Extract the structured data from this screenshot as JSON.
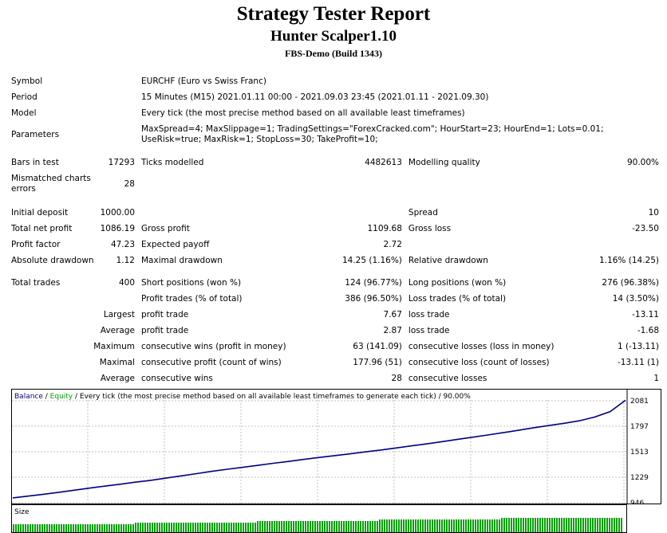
{
  "report": {
    "title": "Strategy Tester Report",
    "ea_name": "Hunter Scalper1.10",
    "server": "FBS-Demo (Build 1343)"
  },
  "info": {
    "symbol_label": "Symbol",
    "symbol_value": "EURCHF (Euro vs Swiss Franc)",
    "period_label": "Period",
    "period_value": "15 Minutes (M15) 2021.01.11 00:00 - 2021.09.03 23:45 (2021.01.11 - 2021.09.30)",
    "model_label": "Model",
    "model_value": "Every tick (the most precise method based on all available least timeframes)",
    "params_label": "Parameters",
    "params_value": "MaxSpread=4; MaxSlippage=1; TradingSettings=\"ForexCracked.com\"; HourStart=23; HourEnd=1; Lots=0.01; UseRisk=true; MaxRisk=1; StopLoss=30; TakeProfit=10;"
  },
  "quality": {
    "bars_label": "Bars in test",
    "bars_value": "17293",
    "ticks_label": "Ticks modelled",
    "ticks_value": "4482613",
    "modq_label": "Modelling quality",
    "modq_value": "90.00%",
    "mism_label": "Mismatched charts errors",
    "mism_value": "28"
  },
  "results": {
    "initdep_label": "Initial deposit",
    "initdep_value": "1000.00",
    "spread_label": "Spread",
    "spread_value": "10",
    "netprofit_label": "Total net profit",
    "netprofit_value": "1086.19",
    "grossprofit_label": "Gross profit",
    "grossprofit_value": "1109.68",
    "grossloss_label": "Gross loss",
    "grossloss_value": "-23.50",
    "pf_label": "Profit factor",
    "pf_value": "47.23",
    "ep_label": "Expected payoff",
    "ep_value": "2.72",
    "absdd_label": "Absolute drawdown",
    "absdd_value": "1.12",
    "maxdd_label": "Maximal drawdown",
    "maxdd_value": "14.25 (1.16%)",
    "reldd_label": "Relative drawdown",
    "reldd_value": "1.16% (14.25)"
  },
  "trades": {
    "total_label": "Total trades",
    "total_value": "400",
    "short_label": "Short positions (won %)",
    "short_value": "124 (96.77%)",
    "long_label": "Long positions (won %)",
    "long_value": "276 (96.38%)",
    "pt_label": "Profit trades (% of total)",
    "pt_value": "386 (96.50%)",
    "lt_label": "Loss trades (% of total)",
    "lt_value": "14 (3.50%)",
    "largest_label": "Largest",
    "largest_pt_label": "profit trade",
    "largest_pt_value": "7.67",
    "largest_lt_label": "loss trade",
    "largest_lt_value": "-13.11",
    "average_label": "Average",
    "average_pt_label": "profit trade",
    "average_pt_value": "2.87",
    "average_lt_label": "loss trade",
    "average_lt_value": "-1.68",
    "maximum_label": "Maximum",
    "max_cw_label": "consecutive wins (profit in money)",
    "max_cw_value": "63 (141.09)",
    "max_cl_label": "consecutive losses (loss in money)",
    "max_cl_value": "1 (-13.11)",
    "maximal_label": "Maximal",
    "mxl_cp_label": "consecutive profit (count of wins)",
    "mxl_cp_value": "177.96 (51)",
    "mxl_cl_label": "consecutive loss (count of losses)",
    "mxl_cl_value": "-13.11 (1)",
    "avg2_label": "Average",
    "avg_cw_label": "consecutive wins",
    "avg_cw_value": "28",
    "avg_cl_label": "consecutive losses",
    "avg_cl_value": "1"
  },
  "chart_data": {
    "type": "line",
    "legend": {
      "balance": "Balance",
      "sep1": " / ",
      "equity": "Equity",
      "rest": " / Every tick (the most precise method based on all available least timeframes to generate each tick) / 90.00%"
    },
    "y_ticks": [
      "2081",
      "1797",
      "1513",
      "1229",
      "946"
    ],
    "ylim": [
      946,
      2081
    ],
    "x": [
      0,
      10,
      20,
      30,
      40,
      50,
      60,
      70,
      80,
      90,
      100,
      110,
      120,
      130,
      140,
      150,
      160,
      170,
      180,
      190,
      200,
      210,
      220,
      230,
      240,
      250,
      260,
      270,
      280,
      290,
      300,
      310,
      320,
      330,
      340,
      350,
      360,
      370,
      380,
      390,
      400
    ],
    "series": [
      {
        "name": "Balance",
        "color": "#000080",
        "values": [
          1000,
          1020,
          1040,
          1062,
          1085,
          1108,
          1130,
          1152,
          1175,
          1195,
          1220,
          1245,
          1270,
          1295,
          1318,
          1340,
          1362,
          1385,
          1405,
          1428,
          1450,
          1470,
          1490,
          1512,
          1532,
          1555,
          1578,
          1600,
          1625,
          1650,
          1675,
          1700,
          1725,
          1752,
          1780,
          1805,
          1830,
          1858,
          1900,
          1960,
          2086
        ]
      }
    ],
    "size_label": "Size",
    "size_color": "#00a000",
    "size_levels": [
      1,
      2,
      3,
      4,
      5
    ]
  }
}
